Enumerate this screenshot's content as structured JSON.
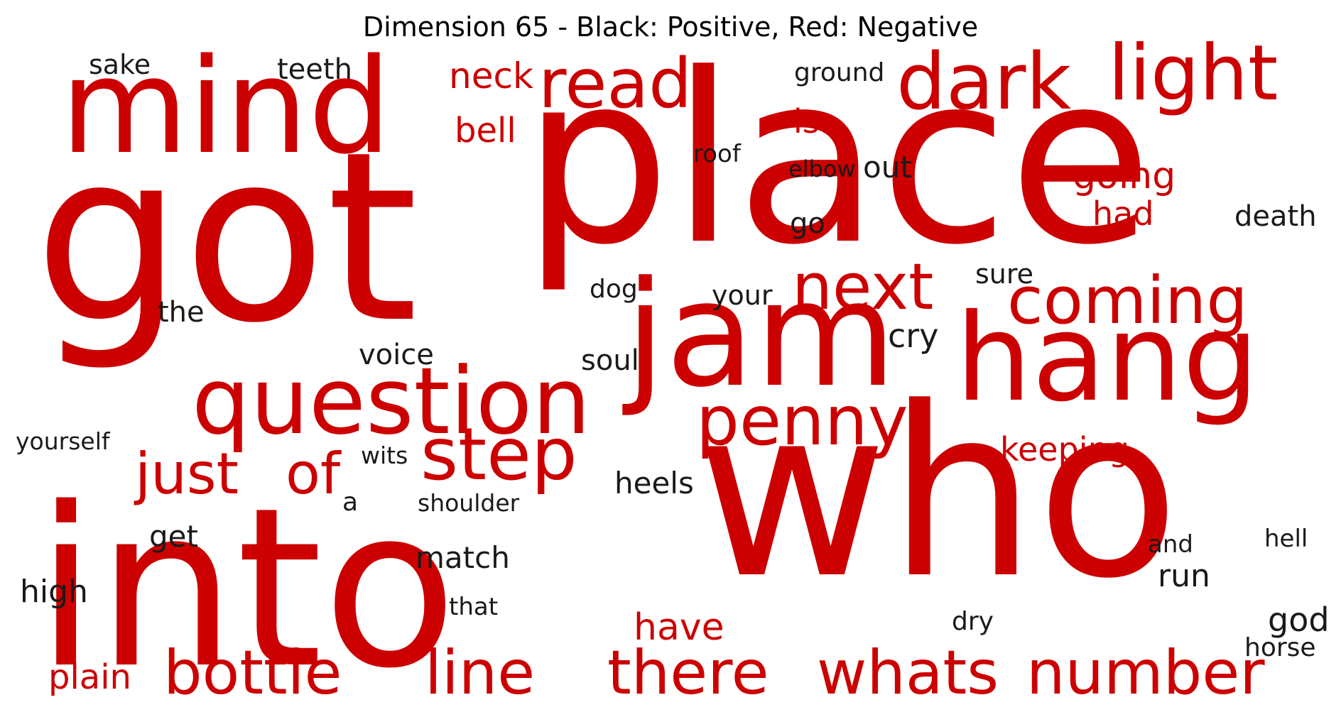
{
  "title": "Dimension 65 - Black: Positive, Red: Negative",
  "colors": {
    "positive": "#1a1a1a",
    "negative": "#cc0000"
  },
  "words": [
    {
      "text": "got",
      "sign": "negative"
    },
    {
      "text": "place",
      "sign": "negative"
    },
    {
      "text": "into",
      "sign": "negative"
    },
    {
      "text": "who",
      "sign": "negative"
    },
    {
      "text": "jam",
      "sign": "negative"
    },
    {
      "text": "hang",
      "sign": "negative"
    },
    {
      "text": "mind",
      "sign": "negative"
    },
    {
      "text": "question",
      "sign": "negative"
    },
    {
      "text": "dark",
      "sign": "negative"
    },
    {
      "text": "light",
      "sign": "negative"
    },
    {
      "text": "read",
      "sign": "negative"
    },
    {
      "text": "coming",
      "sign": "negative"
    },
    {
      "text": "next",
      "sign": "negative"
    },
    {
      "text": "step",
      "sign": "negative"
    },
    {
      "text": "penny",
      "sign": "negative"
    },
    {
      "text": "just",
      "sign": "negative"
    },
    {
      "text": "of",
      "sign": "negative"
    },
    {
      "text": "bottle",
      "sign": "negative"
    },
    {
      "text": "line",
      "sign": "negative"
    },
    {
      "text": "there",
      "sign": "negative"
    },
    {
      "text": "whats",
      "sign": "negative"
    },
    {
      "text": "number",
      "sign": "negative"
    },
    {
      "text": "neck",
      "sign": "negative"
    },
    {
      "text": "bell",
      "sign": "negative"
    },
    {
      "text": "is",
      "sign": "negative"
    },
    {
      "text": "going",
      "sign": "negative"
    },
    {
      "text": "had",
      "sign": "negative"
    },
    {
      "text": "keeping",
      "sign": "negative"
    },
    {
      "text": "have",
      "sign": "negative"
    },
    {
      "text": "plain",
      "sign": "negative"
    },
    {
      "text": "sake",
      "sign": "positive"
    },
    {
      "text": "teeth",
      "sign": "positive"
    },
    {
      "text": "ground",
      "sign": "positive"
    },
    {
      "text": "roof",
      "sign": "positive"
    },
    {
      "text": "elbow",
      "sign": "positive"
    },
    {
      "text": "out",
      "sign": "positive"
    },
    {
      "text": "go",
      "sign": "positive"
    },
    {
      "text": "death",
      "sign": "positive"
    },
    {
      "text": "sure",
      "sign": "positive"
    },
    {
      "text": "dog",
      "sign": "positive"
    },
    {
      "text": "your",
      "sign": "positive"
    },
    {
      "text": "the",
      "sign": "positive"
    },
    {
      "text": "cry",
      "sign": "positive"
    },
    {
      "text": "voice",
      "sign": "positive"
    },
    {
      "text": "soul",
      "sign": "positive"
    },
    {
      "text": "yourself",
      "sign": "positive"
    },
    {
      "text": "wits",
      "sign": "positive"
    },
    {
      "text": "heels",
      "sign": "positive"
    },
    {
      "text": "a",
      "sign": "positive"
    },
    {
      "text": "shoulder",
      "sign": "positive"
    },
    {
      "text": "get",
      "sign": "positive"
    },
    {
      "text": "match",
      "sign": "positive"
    },
    {
      "text": "high",
      "sign": "positive"
    },
    {
      "text": "that",
      "sign": "positive"
    },
    {
      "text": "run",
      "sign": "positive"
    },
    {
      "text": "and",
      "sign": "positive"
    },
    {
      "text": "hell",
      "sign": "positive"
    },
    {
      "text": "god",
      "sign": "positive"
    },
    {
      "text": "dry",
      "sign": "positive"
    },
    {
      "text": "horse",
      "sign": "positive"
    }
  ]
}
